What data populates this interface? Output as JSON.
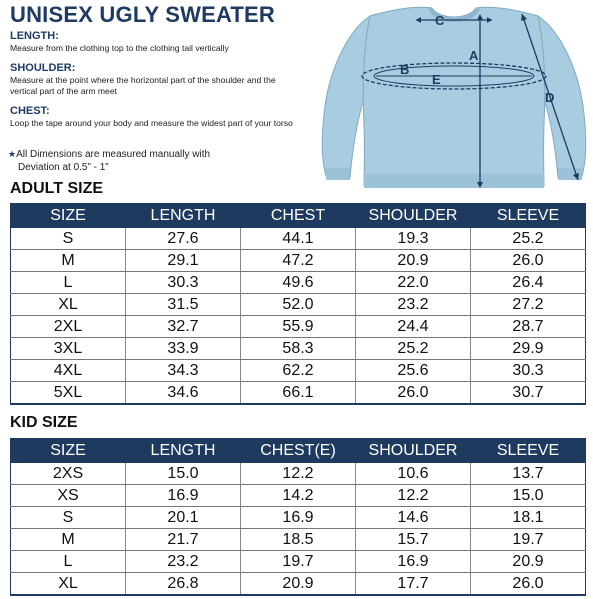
{
  "title": "UNISEX UGLY SWEATER",
  "definitions": [
    {
      "heading": "LENGTH:",
      "text": "Measure from the clothing top to the clothing tail vertically"
    },
    {
      "heading": "SHOULDER:",
      "text": "Measure at the point where the horizontal part of the shoulder and the vertical part of the arm meet"
    },
    {
      "heading": "CHEST:",
      "text": "Loop the tape around your body and measure the widest part of your torso"
    }
  ],
  "note": {
    "line1": "All Dimensions are measured manually with",
    "line2": "Deviation at 0.5” - 1”"
  },
  "diagram_labels": {
    "a": "A",
    "b": "B",
    "c": "C",
    "d": "D",
    "e": "E"
  },
  "sweater_color": "#a9cde0",
  "header_color": "#1e3a5f",
  "adult": {
    "title": "ADULT SIZE",
    "headers": [
      "SIZE",
      "LENGTH",
      "CHEST",
      "SHOULDER",
      "SLEEVE"
    ],
    "rows": [
      [
        "S",
        "27.6",
        "44.1",
        "19.3",
        "25.2"
      ],
      [
        "M",
        "29.1",
        "47.2",
        "20.9",
        "26.0"
      ],
      [
        "L",
        "30.3",
        "49.6",
        "22.0",
        "26.4"
      ],
      [
        "XL",
        "31.5",
        "52.0",
        "23.2",
        "27.2"
      ],
      [
        "2XL",
        "32.7",
        "55.9",
        "24.4",
        "28.7"
      ],
      [
        "3XL",
        "33.9",
        "58.3",
        "25.2",
        "29.9"
      ],
      [
        "4XL",
        "34.3",
        "62.2",
        "25.6",
        "30.3"
      ],
      [
        "5XL",
        "34.6",
        "66.1",
        "26.0",
        "30.7"
      ]
    ]
  },
  "kid": {
    "title": "KID SIZE",
    "headers": [
      "SIZE",
      "LENGTH",
      "CHEST(E)",
      "SHOULDER",
      "SLEEVE"
    ],
    "rows": [
      [
        "2XS",
        "15.0",
        "12.2",
        "10.6",
        "13.7"
      ],
      [
        "XS",
        "16.9",
        "14.2",
        "12.2",
        "15.0"
      ],
      [
        "S",
        "20.1",
        "16.9",
        "14.6",
        "18.1"
      ],
      [
        "M",
        "21.7",
        "18.5",
        "15.7",
        "19.7"
      ],
      [
        "L",
        "23.2",
        "19.7",
        "16.9",
        "20.9"
      ],
      [
        "XL",
        "26.8",
        "20.9",
        "17.7",
        "26.0"
      ]
    ]
  }
}
